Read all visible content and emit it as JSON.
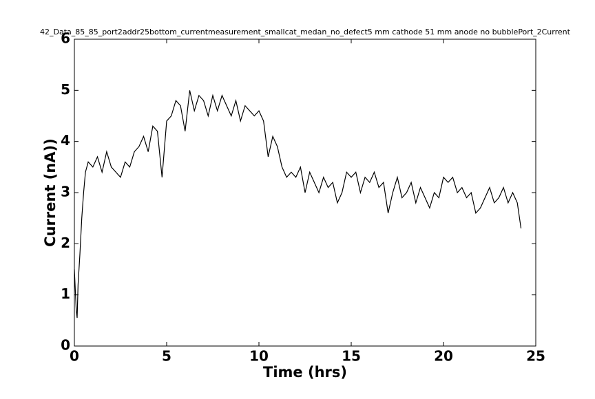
{
  "chart_data": {
    "type": "line",
    "title": "42_Data_85_85_port2addr25bottom_currentmeasurement_smallcat_medan_no_defect5 mm cathode 51 mm anode no bubblePort_2Current",
    "x_label": "Time (hrs)",
    "y_label": "Current (nA))",
    "xlim": [
      0,
      25
    ],
    "ylim": [
      0,
      6
    ],
    "xticks": [
      0,
      5,
      10,
      15,
      20,
      25
    ],
    "yticks": [
      0,
      1,
      2,
      3,
      4,
      5,
      6
    ],
    "grid": false,
    "series": [
      {
        "color": "#000000",
        "x": [
          0,
          0.1,
          0.15,
          0.2,
          0.3,
          0.4,
          0.5,
          0.6,
          0.75,
          1.0,
          1.25,
          1.5,
          1.75,
          2.0,
          2.25,
          2.5,
          2.75,
          3.0,
          3.25,
          3.5,
          3.75,
          4.0,
          4.25,
          4.5,
          4.75,
          5.0,
          5.25,
          5.5,
          5.75,
          6.0,
          6.25,
          6.5,
          6.75,
          7.0,
          7.25,
          7.5,
          7.75,
          8.0,
          8.25,
          8.5,
          8.75,
          9.0,
          9.25,
          9.5,
          9.75,
          10.0,
          10.25,
          10.5,
          10.75,
          11.0,
          11.25,
          11.5,
          11.75,
          12.0,
          12.25,
          12.5,
          12.75,
          13.0,
          13.25,
          13.5,
          13.75,
          14.0,
          14.25,
          14.5,
          14.75,
          15.0,
          15.25,
          15.5,
          15.75,
          16.0,
          16.25,
          16.5,
          16.75,
          17.0,
          17.25,
          17.5,
          17.75,
          18.0,
          18.25,
          18.5,
          18.75,
          19.0,
          19.25,
          19.5,
          19.75,
          20.0,
          20.25,
          20.5,
          20.75,
          21.0,
          21.25,
          21.5,
          21.75,
          22.0,
          22.25,
          22.5,
          22.75,
          23.0,
          23.25,
          23.5,
          23.75,
          24.0,
          24.2
        ],
        "values": [
          1.5,
          0.7,
          0.55,
          1.2,
          1.8,
          2.5,
          3.0,
          3.4,
          3.6,
          3.5,
          3.7,
          3.4,
          3.8,
          3.5,
          3.4,
          3.3,
          3.6,
          3.5,
          3.8,
          3.9,
          4.1,
          3.8,
          4.3,
          4.2,
          3.3,
          4.4,
          4.5,
          4.8,
          4.7,
          4.2,
          5.0,
          4.6,
          4.9,
          4.8,
          4.5,
          4.9,
          4.6,
          4.9,
          4.7,
          4.5,
          4.8,
          4.4,
          4.7,
          4.6,
          4.5,
          4.6,
          4.4,
          3.7,
          4.1,
          3.9,
          3.5,
          3.3,
          3.4,
          3.3,
          3.5,
          3.0,
          3.4,
          3.2,
          3.0,
          3.3,
          3.1,
          3.2,
          2.8,
          3.0,
          3.4,
          3.3,
          3.4,
          3.0,
          3.3,
          3.2,
          3.4,
          3.1,
          3.2,
          2.6,
          3.0,
          3.3,
          2.9,
          3.0,
          3.2,
          2.8,
          3.1,
          2.9,
          2.7,
          3.0,
          2.9,
          3.3,
          3.2,
          3.3,
          3.0,
          3.1,
          2.9,
          3.0,
          2.6,
          2.7,
          2.9,
          3.1,
          2.8,
          2.9,
          3.1,
          2.8,
          3.0,
          2.8,
          2.3
        ]
      }
    ]
  }
}
